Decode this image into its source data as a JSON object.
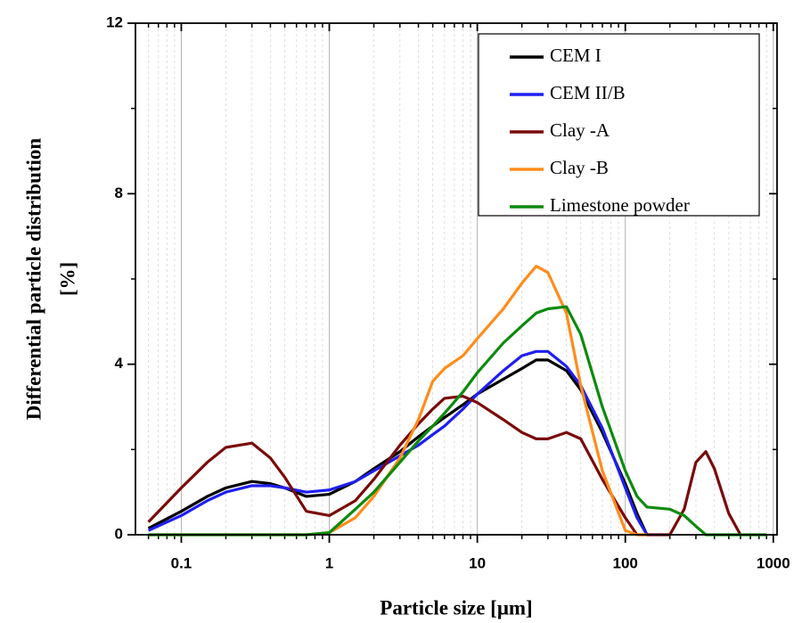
{
  "chart_data": {
    "type": "line",
    "xlabel": "Particle size [μm]",
    "ylabel": [
      "Differential particle distribution",
      "[%]"
    ],
    "x": [
      0.06,
      0.1,
      0.15,
      0.2,
      0.3,
      0.4,
      0.5,
      0.7,
      1,
      1.5,
      2,
      3,
      4,
      5,
      6,
      8,
      10,
      15,
      20,
      25,
      30,
      40,
      50,
      70,
      100,
      120,
      140,
      200,
      250,
      300,
      350,
      400,
      500,
      600,
      900
    ],
    "series": [
      {
        "name": "CEM I",
        "color": "#000000",
        "values": [
          0.15,
          0.55,
          0.9,
          1.1,
          1.25,
          1.2,
          1.1,
          0.9,
          0.95,
          1.25,
          1.55,
          1.95,
          2.3,
          2.55,
          2.75,
          3.05,
          3.3,
          3.65,
          3.9,
          4.1,
          4.1,
          3.85,
          3.4,
          2.4,
          1.2,
          0.5,
          0,
          null,
          null,
          null,
          null,
          null,
          null,
          null,
          null
        ]
      },
      {
        "name": "CEM II/B",
        "color": "#1f1ff0",
        "values": [
          0.1,
          0.45,
          0.8,
          1.0,
          1.15,
          1.15,
          1.1,
          1.0,
          1.05,
          1.25,
          1.5,
          1.85,
          2.1,
          2.35,
          2.55,
          2.95,
          3.3,
          3.85,
          4.2,
          4.3,
          4.3,
          3.95,
          3.5,
          2.5,
          1.1,
          0.4,
          0,
          null,
          null,
          null,
          null,
          null,
          null,
          null,
          null
        ]
      },
      {
        "name": "Clay -A",
        "color": "#7a0a0a",
        "values": [
          0.3,
          1.1,
          1.7,
          2.05,
          2.15,
          1.8,
          1.35,
          0.55,
          0.45,
          0.8,
          1.3,
          2.1,
          2.6,
          2.95,
          3.2,
          3.25,
          3.1,
          2.7,
          2.4,
          2.25,
          2.25,
          2.4,
          2.25,
          1.3,
          0.4,
          0,
          0,
          0,
          0.6,
          1.7,
          1.95,
          1.55,
          0.5,
          0,
          null
        ]
      },
      {
        "name": "Clay -B",
        "color": "#ff8c1a",
        "values": [
          0,
          0,
          0,
          0,
          0,
          0,
          0,
          0,
          0.05,
          0.4,
          0.9,
          1.8,
          2.7,
          3.6,
          3.9,
          4.2,
          4.6,
          5.3,
          5.9,
          6.3,
          6.15,
          5.2,
          3.5,
          1.5,
          0.1,
          0,
          0,
          null,
          null,
          null,
          null,
          null,
          null,
          null,
          null
        ]
      },
      {
        "name": "Limestone powder",
        "color": "#0d8a0d",
        "values": [
          0,
          0,
          0,
          0,
          0,
          0,
          0,
          0,
          0.05,
          0.6,
          1.0,
          1.7,
          2.2,
          2.55,
          2.85,
          3.35,
          3.8,
          4.5,
          4.9,
          5.2,
          5.3,
          5.35,
          4.7,
          3.0,
          1.5,
          0.9,
          0.65,
          0.6,
          0.45,
          0.2,
          0,
          0,
          0,
          0,
          0
        ]
      }
    ],
    "xscale": "log",
    "xlim": [
      0.049,
      1060
    ],
    "xticks": [
      0.1,
      1,
      10,
      100,
      1000
    ],
    "xminorticks": [
      0.06,
      0.07,
      0.08,
      0.09,
      0.2,
      0.3,
      0.4,
      0.5,
      0.6,
      0.7,
      0.8,
      0.9,
      2,
      3,
      4,
      5,
      6,
      7,
      8,
      9,
      20,
      30,
      40,
      50,
      60,
      70,
      80,
      90,
      200,
      300,
      400,
      500,
      600,
      700,
      800,
      900
    ],
    "ylim": [
      0,
      12
    ],
    "yticks": [
      0,
      4,
      8,
      12
    ],
    "yminorticks": [
      2,
      6,
      10
    ],
    "grid": true,
    "legend": "upper right"
  }
}
